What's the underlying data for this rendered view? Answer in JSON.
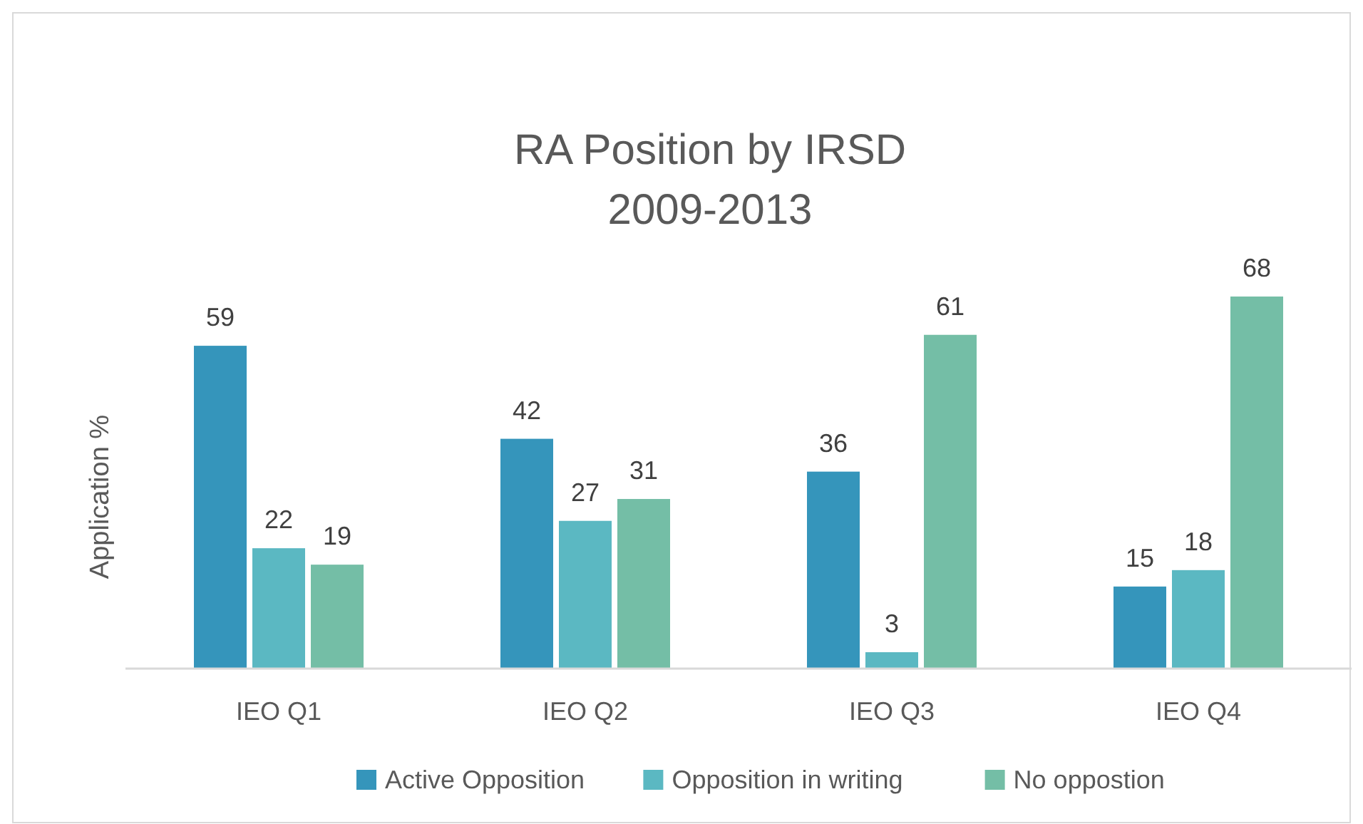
{
  "chart_data": {
    "type": "bar",
    "title": "RA Position by IRSD\n2009-2013",
    "ylabel": "Application %",
    "categories": [
      "IEO Q1",
      "IEO Q2",
      "IEO Q3",
      "IEO Q4"
    ],
    "series": [
      {
        "name": "Active Opposition",
        "color": "#3595bb",
        "values": [
          59,
          42,
          36,
          15
        ]
      },
      {
        "name": "Opposition in writing",
        "color": "#5bb8c2",
        "values": [
          22,
          27,
          3,
          18
        ]
      },
      {
        "name": "No oppostion",
        "color": "#74bea6",
        "values": [
          19,
          31,
          61,
          68
        ]
      }
    ],
    "data_labels": true,
    "legend": "bottom"
  }
}
